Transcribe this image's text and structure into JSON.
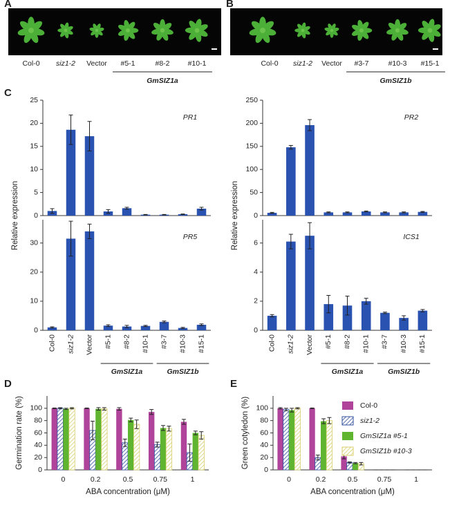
{
  "photos": [
    {
      "panel": "A",
      "labels": [
        "Col-0",
        "siz1-2",
        "Vector",
        "#5-1",
        "#8-2",
        "#10-1"
      ],
      "group": "GmSIZ1a"
    },
    {
      "panel": "B",
      "labels": [
        "Col-0",
        "siz1-2",
        "Vector",
        "#3-7",
        "#10-3",
        "#15-1"
      ],
      "group": "GmSIZ1b"
    }
  ],
  "chart_data": [
    {
      "type": "bar",
      "panel": "C",
      "ylabel": "Relative expression",
      "annotation": "PR1",
      "color": "#2a52b0",
      "values": [
        1.0,
        18.6,
        17.2,
        0.9,
        1.6,
        0.2,
        0.2,
        0.3,
        1.5
      ],
      "errors": [
        0.5,
        3.2,
        3.2,
        0.4,
        0.2,
        0.05,
        0.05,
        0.05,
        0.3
      ],
      "ylim": [
        0,
        25
      ],
      "yticks": [
        0,
        5,
        10,
        15,
        20,
        25
      ]
    },
    {
      "type": "bar",
      "annotation": "PR5",
      "color": "#2a52b0",
      "categories": [
        "Col-0",
        "siz1-2",
        "Vector",
        "#5-1",
        "#8-2",
        "#10-1",
        "#3-7",
        "#10-3",
        "#15-1"
      ],
      "groups": [
        "GmSIZ1a",
        "GmSIZ1b"
      ],
      "values": [
        1.0,
        31.5,
        34.0,
        1.6,
        1.3,
        1.5,
        2.9,
        0.8,
        1.9
      ],
      "errors": [
        0.2,
        6.0,
        2.5,
        0.3,
        0.4,
        0.2,
        0.3,
        0.2,
        0.3
      ],
      "ylim": [
        0,
        38
      ],
      "yticks": [
        0,
        10,
        20,
        30
      ]
    },
    {
      "type": "bar",
      "ylabel": "Relative expression",
      "annotation": "PR2",
      "color": "#2a52b0",
      "values": [
        6,
        148,
        196,
        7,
        7,
        9,
        7,
        7,
        8
      ],
      "errors": [
        1,
        4,
        12,
        1,
        1,
        1,
        1,
        1,
        1
      ],
      "ylim": [
        0,
        250
      ],
      "yticks": [
        0,
        50,
        100,
        150,
        200,
        250
      ]
    },
    {
      "type": "bar",
      "annotation": "ICS1",
      "color": "#2a52b0",
      "categories": [
        "Col-0",
        "siz1-2",
        "Vector",
        "#5-1",
        "#8-2",
        "#10-1",
        "#3-7",
        "#10-3",
        "#15-1"
      ],
      "groups": [
        "GmSIZ1a",
        "GmSIZ1b"
      ],
      "values": [
        1.0,
        6.1,
        6.5,
        1.8,
        1.7,
        2.0,
        1.2,
        0.85,
        1.35
      ],
      "errors": [
        0.08,
        0.5,
        0.9,
        0.6,
        0.65,
        0.2,
        0.05,
        0.15,
        0.08
      ],
      "ylim": [
        0,
        7.6
      ],
      "yticks": [
        0,
        2,
        4,
        6
      ]
    },
    {
      "type": "bar",
      "panel": "D",
      "ylabel": "Germination rate (%)",
      "xlabel": "ABA concentration (μM)",
      "categories": [
        "0",
        "0.2",
        "0.5",
        "0.75",
        "1"
      ],
      "series": [
        {
          "name": "Col-0",
          "color": "#b0449a",
          "values": [
            100,
            100,
            99,
            94,
            78
          ],
          "errors": [
            0.5,
            0.5,
            2,
            4,
            4
          ]
        },
        {
          "name": "siz1-2",
          "color": "#2f4f9f",
          "hatch": true,
          "values": [
            100,
            64,
            44,
            41,
            28
          ],
          "errors": [
            1,
            15,
            6,
            4,
            14
          ]
        },
        {
          "name": "GmSIZ1a #5-1",
          "color": "#5fb530",
          "values": [
            99,
            99,
            81,
            68,
            60
          ],
          "errors": [
            1,
            2,
            3,
            4,
            3
          ]
        },
        {
          "name": "GmSIZ1b #10-3",
          "color": "#d8cf6a",
          "hatch": true,
          "values": [
            100,
            99,
            74,
            67,
            56
          ],
          "errors": [
            1,
            2,
            7,
            4,
            6
          ]
        }
      ],
      "ylim": [
        0,
        120
      ],
      "yticks": [
        0,
        20,
        40,
        60,
        80,
        100
      ]
    },
    {
      "type": "bar",
      "panel": "E",
      "ylabel": "Green cotyledon (%)",
      "xlabel": "ABA concentration (μM)",
      "legend": "upper right",
      "categories": [
        "0",
        "0.2",
        "0.5",
        "0.75",
        "1"
      ],
      "series": [
        {
          "name": "Col-0",
          "color": "#b0449a",
          "values": [
            100,
            100,
            22,
            0,
            0
          ],
          "errors": [
            1,
            0.5,
            4,
            0,
            0
          ]
        },
        {
          "name": "siz1-2",
          "color": "#2f4f9f",
          "hatch": true,
          "values": [
            98,
            20,
            12,
            0,
            0
          ],
          "errors": [
            2,
            4,
            1,
            0,
            0
          ]
        },
        {
          "name": "GmSIZ1a #5-1",
          "color": "#5fb530",
          "values": [
            97,
            79,
            11,
            0,
            0
          ],
          "errors": [
            3,
            4,
            1,
            0,
            0
          ]
        },
        {
          "name": "GmSIZ1b #10-3",
          "color": "#d8cf6a",
          "hatch": true,
          "values": [
            100,
            80,
            10,
            0,
            0
          ],
          "errors": [
            1,
            5,
            2,
            0,
            0
          ]
        }
      ],
      "ylim": [
        0,
        120
      ],
      "yticks": [
        0,
        20,
        40,
        60,
        80,
        100
      ]
    }
  ]
}
